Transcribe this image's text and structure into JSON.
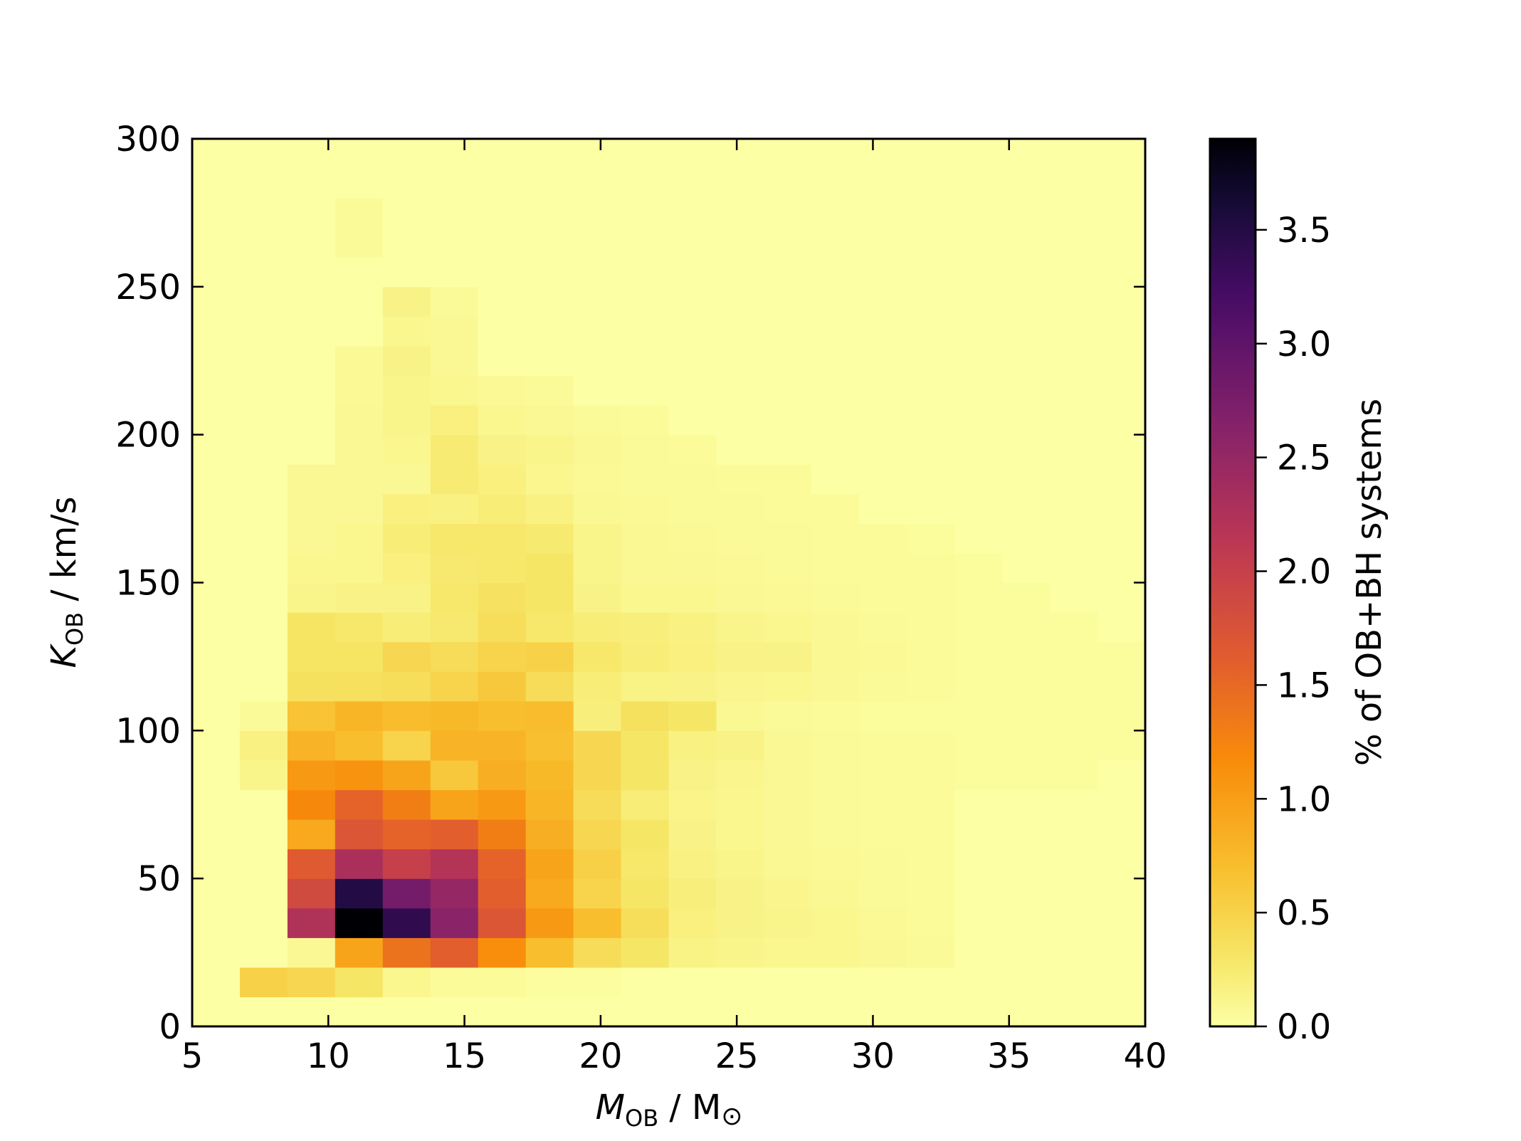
{
  "chart_data": {
    "type": "heatmap",
    "title": "",
    "xlabel": {
      "main": "M",
      "sub": "OB",
      "rest": " / M",
      "symbol": "⊙"
    },
    "ylabel": {
      "main": "K",
      "sub": "OB",
      "rest": " / km/s"
    },
    "colorbar_label": "% of OB+BH systems",
    "xlim": [
      5,
      40
    ],
    "ylim": [
      0,
      300
    ],
    "x_ticks": [
      "5",
      "10",
      "15",
      "20",
      "25",
      "30",
      "35",
      "40"
    ],
    "y_ticks": [
      "0",
      "50",
      "100",
      "150",
      "200",
      "250",
      "300"
    ],
    "colorbar_ticks": [
      "0.0",
      "0.5",
      "1.0",
      "1.5",
      "2.0",
      "2.5",
      "3.0",
      "3.5"
    ],
    "colorbar_range": [
      0,
      3.9
    ],
    "colormap": "inferno_r",
    "grid": false,
    "x_bin_edges": [
      5.0,
      6.75,
      8.5,
      10.25,
      12.0,
      13.75,
      15.5,
      17.25,
      19.0,
      20.75,
      22.5,
      24.25,
      26.0,
      27.75,
      29.5,
      31.25,
      33.0,
      34.75,
      36.5,
      38.25,
      40.0
    ],
    "y_bin_edges": [
      0,
      10,
      20,
      30,
      40,
      50,
      60,
      70,
      80,
      90,
      100,
      110,
      120,
      130,
      140,
      150,
      160,
      170,
      180,
      190,
      200,
      210,
      220,
      230,
      240,
      250,
      260,
      270,
      280,
      290,
      300
    ],
    "values": [
      [
        0.001,
        0.001,
        0.001,
        0.001,
        0.001,
        0.001,
        0.001,
        0.001,
        0.001,
        0.001,
        0.001,
        0.001,
        0.001,
        0.001,
        0.001,
        0.001,
        0.001,
        0.001,
        0.001,
        0.001
      ],
      [
        0.001,
        0.5,
        0.45,
        0.3,
        0.1,
        0.05,
        0.05,
        0.03,
        0.03,
        0.001,
        0.001,
        0.001,
        0.001,
        0.001,
        0.001,
        0.001,
        0.001,
        0.001,
        0.001,
        0.001
      ],
      [
        0.001,
        0.001,
        0.08,
        0.95,
        1.4,
        1.6,
        1.15,
        0.7,
        0.4,
        0.3,
        0.15,
        0.12,
        0.1,
        0.1,
        0.08,
        0.06,
        0.001,
        0.001,
        0.001,
        0.001
      ],
      [
        0.001,
        0.001,
        2.25,
        3.9,
        3.4,
        2.6,
        1.7,
        1.05,
        0.7,
        0.38,
        0.18,
        0.14,
        0.12,
        0.1,
        0.07,
        0.05,
        0.001,
        0.001,
        0.001,
        0.001
      ],
      [
        0.001,
        0.001,
        1.85,
        3.5,
        2.8,
        2.5,
        1.6,
        0.9,
        0.48,
        0.3,
        0.2,
        0.14,
        0.11,
        0.09,
        0.06,
        0.05,
        0.001,
        0.001,
        0.001,
        0.001
      ],
      [
        0.001,
        0.001,
        1.65,
        2.3,
        2.0,
        2.2,
        1.55,
        0.95,
        0.52,
        0.28,
        0.16,
        0.12,
        0.09,
        0.07,
        0.06,
        0.05,
        0.001,
        0.001,
        0.001,
        0.001
      ],
      [
        0.001,
        0.001,
        0.9,
        1.7,
        1.55,
        1.6,
        1.3,
        0.85,
        0.45,
        0.3,
        0.14,
        0.1,
        0.08,
        0.06,
        0.05,
        0.05,
        0.001,
        0.001,
        0.001,
        0.001
      ],
      [
        0.001,
        0.001,
        1.2,
        1.55,
        1.3,
        0.95,
        1.05,
        0.78,
        0.4,
        0.22,
        0.13,
        0.1,
        0.08,
        0.06,
        0.05,
        0.05,
        0.001,
        0.001,
        0.001,
        0.001
      ],
      [
        0.001,
        0.12,
        1.05,
        1.1,
        0.95,
        0.6,
        0.85,
        0.75,
        0.45,
        0.3,
        0.14,
        0.11,
        0.08,
        0.06,
        0.05,
        0.05,
        0.04,
        0.04,
        0.04,
        0.001
      ],
      [
        0.001,
        0.17,
        0.8,
        0.7,
        0.48,
        0.8,
        0.8,
        0.68,
        0.45,
        0.3,
        0.16,
        0.14,
        0.08,
        0.06,
        0.05,
        0.05,
        0.04,
        0.04,
        0.04,
        0.04
      ],
      [
        0.001,
        0.06,
        0.65,
        0.78,
        0.72,
        0.75,
        0.7,
        0.72,
        0.2,
        0.35,
        0.3,
        0.09,
        0.06,
        0.05,
        0.04,
        0.04,
        0.04,
        0.04,
        0.04,
        0.04
      ],
      [
        0.001,
        0.001,
        0.35,
        0.36,
        0.38,
        0.48,
        0.6,
        0.4,
        0.22,
        0.15,
        0.14,
        0.11,
        0.1,
        0.08,
        0.06,
        0.05,
        0.04,
        0.04,
        0.04,
        0.04
      ],
      [
        0.001,
        0.001,
        0.32,
        0.32,
        0.45,
        0.4,
        0.48,
        0.5,
        0.28,
        0.22,
        0.18,
        0.14,
        0.14,
        0.09,
        0.07,
        0.05,
        0.04,
        0.04,
        0.04,
        0.04
      ],
      [
        0.001,
        0.001,
        0.32,
        0.28,
        0.22,
        0.26,
        0.38,
        0.28,
        0.22,
        0.2,
        0.16,
        0.12,
        0.1,
        0.08,
        0.06,
        0.05,
        0.04,
        0.04,
        0.04,
        0.001
      ],
      [
        0.001,
        0.001,
        0.12,
        0.14,
        0.14,
        0.28,
        0.34,
        0.3,
        0.14,
        0.1,
        0.1,
        0.08,
        0.07,
        0.06,
        0.05,
        0.05,
        0.04,
        0.04,
        0.001,
        0.001
      ],
      [
        0.001,
        0.001,
        0.1,
        0.1,
        0.18,
        0.26,
        0.28,
        0.3,
        0.12,
        0.09,
        0.08,
        0.07,
        0.06,
        0.05,
        0.05,
        0.05,
        0.04,
        0.001,
        0.001,
        0.001
      ],
      [
        0.001,
        0.001,
        0.08,
        0.1,
        0.22,
        0.28,
        0.28,
        0.25,
        0.12,
        0.09,
        0.07,
        0.06,
        0.06,
        0.05,
        0.05,
        0.04,
        0.001,
        0.001,
        0.001,
        0.001
      ],
      [
        0.001,
        0.001,
        0.08,
        0.08,
        0.18,
        0.16,
        0.22,
        0.16,
        0.09,
        0.07,
        0.06,
        0.06,
        0.05,
        0.05,
        0.001,
        0.001,
        0.001,
        0.001,
        0.001,
        0.001
      ],
      [
        0.001,
        0.001,
        0.08,
        0.08,
        0.08,
        0.24,
        0.18,
        0.1,
        0.07,
        0.06,
        0.06,
        0.05,
        0.05,
        0.001,
        0.001,
        0.001,
        0.001,
        0.001,
        0.001,
        0.001
      ],
      [
        0.001,
        0.001,
        0.001,
        0.08,
        0.1,
        0.24,
        0.14,
        0.12,
        0.08,
        0.06,
        0.05,
        0.001,
        0.001,
        0.001,
        0.001,
        0.001,
        0.001,
        0.001,
        0.001,
        0.001
      ],
      [
        0.001,
        0.001,
        0.001,
        0.08,
        0.12,
        0.18,
        0.1,
        0.08,
        0.06,
        0.05,
        0.001,
        0.001,
        0.001,
        0.001,
        0.001,
        0.001,
        0.001,
        0.001,
        0.001,
        0.001
      ],
      [
        0.001,
        0.001,
        0.001,
        0.07,
        0.12,
        0.1,
        0.07,
        0.06,
        0.001,
        0.001,
        0.001,
        0.001,
        0.001,
        0.001,
        0.001,
        0.001,
        0.001,
        0.001,
        0.001,
        0.001
      ],
      [
        0.001,
        0.001,
        0.001,
        0.07,
        0.14,
        0.08,
        0.001,
        0.001,
        0.001,
        0.001,
        0.001,
        0.001,
        0.001,
        0.001,
        0.001,
        0.001,
        0.001,
        0.001,
        0.001,
        0.001
      ],
      [
        0.001,
        0.001,
        0.001,
        0.001,
        0.1,
        0.08,
        0.001,
        0.001,
        0.001,
        0.001,
        0.001,
        0.001,
        0.001,
        0.001,
        0.001,
        0.001,
        0.001,
        0.001,
        0.001,
        0.001
      ],
      [
        0.001,
        0.001,
        0.001,
        0.001,
        0.14,
        0.06,
        0.001,
        0.001,
        0.001,
        0.001,
        0.001,
        0.001,
        0.001,
        0.001,
        0.001,
        0.001,
        0.001,
        0.001,
        0.001,
        0.001
      ],
      [
        0.001,
        0.001,
        0.001,
        0.001,
        0.001,
        0.001,
        0.001,
        0.001,
        0.001,
        0.001,
        0.001,
        0.001,
        0.001,
        0.001,
        0.001,
        0.001,
        0.001,
        0.001,
        0.001,
        0.001
      ],
      [
        0.001,
        0.001,
        0.001,
        0.06,
        0.001,
        0.001,
        0.001,
        0.001,
        0.001,
        0.001,
        0.001,
        0.001,
        0.001,
        0.001,
        0.001,
        0.001,
        0.001,
        0.001,
        0.001,
        0.001
      ],
      [
        0.001,
        0.001,
        0.001,
        0.06,
        0.001,
        0.001,
        0.001,
        0.001,
        0.001,
        0.001,
        0.001,
        0.001,
        0.001,
        0.001,
        0.001,
        0.001,
        0.001,
        0.001,
        0.001,
        0.001
      ],
      [
        0.001,
        0.001,
        0.001,
        0.001,
        0.001,
        0.001,
        0.001,
        0.001,
        0.001,
        0.001,
        0.001,
        0.001,
        0.001,
        0.001,
        0.001,
        0.001,
        0.001,
        0.001,
        0.001,
        0.001
      ],
      [
        0.001,
        0.001,
        0.001,
        0.001,
        0.001,
        0.001,
        0.001,
        0.001,
        0.001,
        0.001,
        0.001,
        0.001,
        0.001,
        0.001,
        0.001,
        0.001,
        0.001,
        0.001,
        0.001,
        0.001
      ]
    ]
  }
}
